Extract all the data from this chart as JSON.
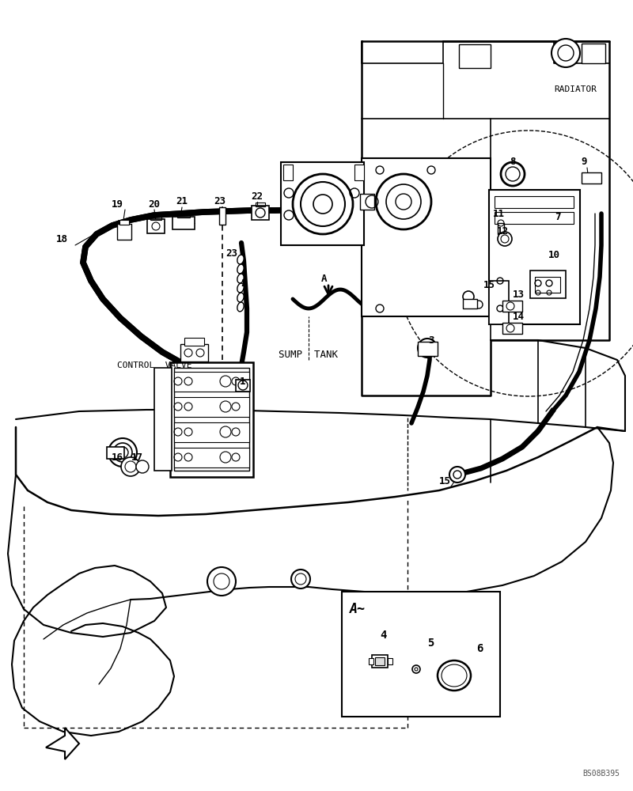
{
  "background_color": "#ffffff",
  "line_color": "#000000",
  "fig_width": 8.0,
  "fig_height": 10.0,
  "dpi": 100,
  "watermark": "BS08B395",
  "radiator_label": "RADIATOR",
  "control_valve_label": "CONTROL  VALVE",
  "sump_tank_label": "SUMP  TANK",
  "detail_label": "A~",
  "arrow_label": "A"
}
